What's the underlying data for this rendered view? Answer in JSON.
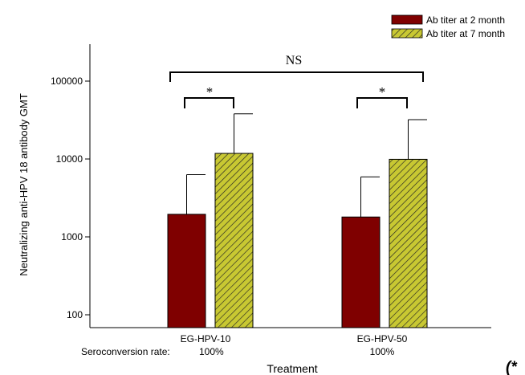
{
  "chart_data": {
    "type": "bar",
    "ylabel": "Neutralizing anti-HPV 18 antibody GMT",
    "xlabel": "Treatment",
    "yscale": "log",
    "ylim": [
      70,
      300000
    ],
    "yticks": [
      100,
      1000,
      10000,
      100000
    ],
    "ytick_labels": [
      "100",
      "1000",
      "10000",
      "100000"
    ],
    "categories": [
      "EG-HPV-10",
      "EG-HPV-50"
    ],
    "series": [
      {
        "name": "Ab titer at 2 month",
        "color": "#7f0000",
        "pattern": "solid",
        "values": [
          1950,
          1800
        ],
        "error_upper": [
          6300,
          5900
        ]
      },
      {
        "name": "Ab titer at 7 month",
        "color": "#c8c832",
        "pattern": "diagonal-hatch",
        "values": [
          11800,
          9900
        ],
        "error_upper": [
          38000,
          32000
        ]
      }
    ],
    "legend_position": "top-right",
    "annotations": {
      "pair_significance": [
        "*",
        "*"
      ],
      "overall_significance": "NS"
    },
    "seroconversion": {
      "label": "Seroconversion rate:",
      "values": [
        "100%",
        "100%"
      ]
    },
    "corner_text": "(*"
  }
}
